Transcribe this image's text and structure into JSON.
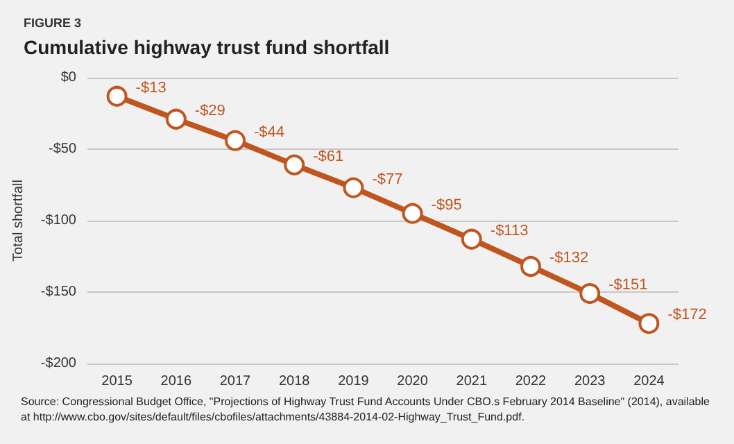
{
  "chart_data": {
    "type": "line",
    "title": "Cumulative highway trust fund shortfall",
    "subtitle": "FIGURE 3",
    "ylabel": "Total shortfall",
    "annotations": [
      "Source: Congressional Budget Office, \"Projections of Highway Trust Fund Accounts Under CBO.s February 2014 Baseline\" (2014), available at http://www.cbo.gov/sites/default/files/cbofiles/attachments/43884-2014-02-Highway_Trust_Fund.pdf."
    ],
    "categories": [
      "2015",
      "2016",
      "2017",
      "2018",
      "2019",
      "2020",
      "2021",
      "2022",
      "2023",
      "2024"
    ],
    "series": [
      {
        "color": "#c0561f",
        "values": [
          -13,
          -29,
          -44,
          -61,
          -77,
          -95,
          -113,
          -132,
          -151,
          -172
        ],
        "value_labels": [
          "-$13",
          "-$29",
          "-$44",
          "-$61",
          "-$77",
          "-$95",
          "-$113",
          "-$132",
          "-$151",
          "-$172"
        ]
      }
    ],
    "ylim": [
      -200,
      0
    ],
    "yticks": [
      {
        "value": -200,
        "label": "-$200"
      },
      {
        "value": -150,
        "label": "-$150"
      },
      {
        "value": -100,
        "label": "-$100"
      },
      {
        "value": -50,
        "label": "-$50"
      },
      {
        "value": 0,
        "label": "$0"
      }
    ],
    "grid": "y",
    "marker": "circle",
    "line_style": "solid"
  }
}
